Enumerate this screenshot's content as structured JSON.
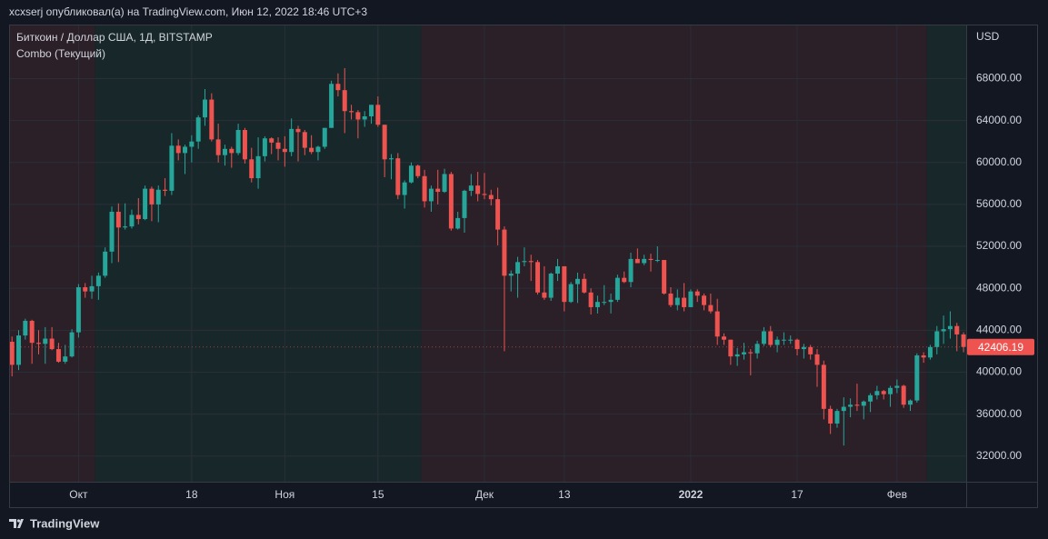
{
  "header": "xcxserj опубликовал(а) на TradingView.com, Июн 12, 2022 18:46 UTC+3",
  "footer": "TradingView",
  "chart_data": {
    "type": "candlestick",
    "title": "Биткоин / Доллар США, 1Д, BITSTAMP",
    "subtitle": "Combo (Текущий)",
    "y_axis_label": "USD",
    "up_color": "#26a69a",
    "down_color": "#ef5350",
    "grid": true,
    "xlim": [
      -0.3,
      143.4
    ],
    "xticks": [
      {
        "value": 10,
        "label": "Окт"
      },
      {
        "value": 27,
        "label": "18"
      },
      {
        "value": 41,
        "label": "Ноя"
      },
      {
        "value": 55,
        "label": "15"
      },
      {
        "value": 71,
        "label": "Дек"
      },
      {
        "value": 83,
        "label": "13"
      },
      {
        "value": 102,
        "label": "2022"
      },
      {
        "value": 118,
        "label": "17"
      },
      {
        "value": 133,
        "label": "Фев"
      }
    ],
    "ylim": [
      29550,
      73070
    ],
    "yticks": [
      {
        "value": 32000,
        "label": "32000.00"
      },
      {
        "value": 36000,
        "label": "36000.00"
      },
      {
        "value": 40000,
        "label": "40000.00"
      },
      {
        "value": 44000,
        "label": "44000.00"
      },
      {
        "value": 48000,
        "label": "48000.00"
      },
      {
        "value": 52000,
        "label": "52000.00"
      },
      {
        "value": 56000,
        "label": "56000.00"
      },
      {
        "value": 60000,
        "label": "60000.00"
      },
      {
        "value": 64000,
        "label": "64000.00"
      },
      {
        "value": 68000,
        "label": "68000.00"
      }
    ],
    "bands": [
      {
        "from": 0,
        "to": 12,
        "color": "#2b1f28"
      },
      {
        "from": 13,
        "to": 61,
        "color": "#18282a"
      },
      {
        "from": 62,
        "to": 137,
        "color": "#2b1f28"
      },
      {
        "from": 138,
        "to": 143,
        "color": "#18282a"
      }
    ],
    "open": [
      42900,
      40700,
      43500,
      44900,
      42800,
      42700,
      43200,
      42200,
      41000,
      41500,
      43800,
      48100,
      47700,
      48200,
      49200,
      51500,
      55300,
      53800,
      53900,
      55000,
      54600,
      57500,
      56000,
      57400,
      57300,
      61600,
      60900,
      61500,
      62000,
      64300,
      66000,
      62200,
      60700,
      61300,
      60900,
      63100,
      60300,
      58500,
      60600,
      62300,
      61900,
      61300,
      61000,
      63200,
      62900,
      61400,
      61000,
      61500,
      63300,
      67500,
      66900,
      64900,
      64800,
      64100,
      64400,
      65500,
      63600,
      60300,
      60400,
      56900,
      58100,
      59700,
      58700,
      56300,
      57500,
      57200,
      58900,
      53700,
      54700,
      57300,
      57800,
      57000,
      56900,
      56500,
      53600,
      49200,
      49400,
      50500,
      50600,
      50500,
      47600,
      47100,
      49400,
      50100,
      46700,
      48400,
      48900,
      47600,
      46200,
      46700,
      46700,
      46900,
      49000,
      48600,
      50800,
      50400,
      50800,
      50700,
      50700,
      47500,
      46400,
      47100,
      46200,
      47700,
      47300,
      46400,
      45800,
      43400,
      43100,
      41500,
      41700,
      41900,
      41800,
      42700,
      43900,
      42600,
      43100,
      43100,
      43100,
      42200,
      42400,
      41700,
      40700,
      36500,
      35100,
      36300,
      36700,
      36900,
      36800,
      37200,
      37800,
      38200,
      37900,
      38500,
      38700,
      36900,
      37300,
      41600,
      41400,
      42400,
      43900,
      44100,
      44400,
      43600
    ],
    "high": [
      43400,
      44000,
      45100,
      45000,
      44000,
      44300,
      44300,
      42800,
      42600,
      44100,
      48400,
      48500,
      49200,
      49500,
      51900,
      55800,
      56100,
      56100,
      55500,
      56600,
      57800,
      57700,
      57800,
      58500,
      62800,
      62200,
      61700,
      62600,
      64500,
      67000,
      66600,
      63700,
      61700,
      61500,
      63700,
      63300,
      61400,
      62400,
      62500,
      62400,
      62400,
      62500,
      64200,
      63500,
      63100,
      62600,
      61600,
      63300,
      67800,
      68500,
      69000,
      65500,
      65000,
      64900,
      65500,
      66300,
      63600,
      60800,
      60900,
      58300,
      60000,
      59800,
      59300,
      57800,
      59300,
      59400,
      59100,
      55300,
      57400,
      58900,
      59100,
      59000,
      57400,
      57600,
      53900,
      49700,
      51000,
      51900,
      51200,
      50700,
      50100,
      49500,
      50800,
      50100,
      48600,
      49500,
      49400,
      48000,
      47300,
      48300,
      47500,
      49300,
      49600,
      51400,
      51800,
      51200,
      51300,
      52000,
      50700,
      48100,
      47900,
      48500,
      47900,
      47900,
      47500,
      47500,
      47000,
      43700,
      43100,
      42300,
      42800,
      42200,
      43000,
      44300,
      44400,
      43400,
      43800,
      43500,
      43200,
      42700,
      42600,
      42200,
      41100,
      36800,
      36500,
      37600,
      37500,
      38900,
      37300,
      38000,
      38700,
      38300,
      38700,
      39300,
      38800,
      37400,
      41800,
      41900,
      42600,
      44400,
      45400,
      45800,
      44700,
      43800
    ],
    "low": [
      39600,
      40200,
      43100,
      40800,
      41700,
      40800,
      42100,
      40900,
      40800,
      41400,
      43300,
      47100,
      47000,
      46900,
      49000,
      50400,
      50500,
      53600,
      53700,
      54100,
      54500,
      54400,
      54300,
      56800,
      56900,
      60200,
      58900,
      60000,
      61300,
      63500,
      62000,
      60000,
      59700,
      59500,
      60700,
      59900,
      58100,
      57500,
      60100,
      60800,
      60200,
      59600,
      60600,
      60100,
      60700,
      60800,
      60200,
      61300,
      63300,
      66300,
      62800,
      64100,
      62300,
      63400,
      63700,
      63400,
      58600,
      58400,
      56500,
      55600,
      58000,
      58500,
      55700,
      55300,
      56000,
      57100,
      53500,
      53600,
      53300,
      56800,
      56300,
      56500,
      55900,
      52100,
      42000,
      47700,
      47100,
      50100,
      48700,
      47400,
      46900,
      46800,
      48700,
      45800,
      46600,
      46600,
      47500,
      45500,
      45600,
      46400,
      45600,
      46700,
      48500,
      48100,
      50400,
      50200,
      49600,
      50500,
      47400,
      46200,
      45900,
      45800,
      46200,
      46700,
      45900,
      45600,
      42600,
      42600,
      40700,
      40600,
      41200,
      39700,
      41300,
      42500,
      42400,
      41900,
      42600,
      42700,
      41600,
      41300,
      41200,
      38600,
      35500,
      34100,
      34700,
      33000,
      35700,
      36300,
      35500,
      36200,
      37400,
      37400,
      36700,
      38000,
      36600,
      36300,
      37100,
      40900,
      41200,
      41700,
      42700,
      43200,
      42000,
      41900
    ],
    "close": [
      40700,
      43500,
      44900,
      42800,
      42700,
      43200,
      42200,
      41000,
      41500,
      43800,
      48100,
      47700,
      48200,
      49200,
      51500,
      55300,
      53800,
      53900,
      55000,
      54600,
      57500,
      56000,
      57400,
      57300,
      61600,
      60900,
      61500,
      62000,
      64300,
      66000,
      62200,
      60700,
      61300,
      60900,
      63100,
      60300,
      58500,
      60600,
      62300,
      61900,
      61300,
      61000,
      63200,
      62900,
      61400,
      61000,
      61500,
      63300,
      67500,
      66900,
      64900,
      64800,
      64100,
      64400,
      65500,
      63600,
      60300,
      60400,
      56900,
      58100,
      59700,
      58700,
      56300,
      57500,
      57200,
      58900,
      53700,
      54700,
      57300,
      57800,
      57000,
      56900,
      56500,
      53600,
      49200,
      49400,
      50500,
      50600,
      50500,
      47600,
      47100,
      49400,
      50100,
      46700,
      48400,
      48900,
      47600,
      46200,
      46700,
      46700,
      46900,
      49000,
      48600,
      50800,
      50400,
      50800,
      50700,
      50700,
      47500,
      46400,
      47100,
      46200,
      47700,
      47300,
      46400,
      45800,
      43400,
      43100,
      41500,
      41700,
      41900,
      41800,
      42700,
      43900,
      42600,
      43100,
      43100,
      43100,
      42200,
      42400,
      41700,
      40700,
      36500,
      35100,
      36300,
      36700,
      36900,
      36800,
      37200,
      37800,
      38200,
      37900,
      38500,
      38700,
      36900,
      37300,
      41600,
      41400,
      42400,
      43900,
      44100,
      44400,
      43600,
      42406.19
    ]
  }
}
